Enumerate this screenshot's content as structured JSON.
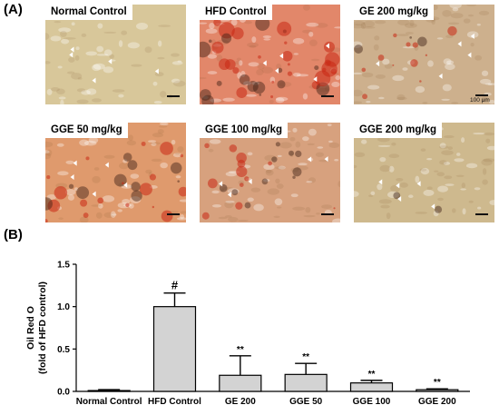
{
  "figure": {
    "panel_a_label": "(A)",
    "panel_b_label": "(B)",
    "micrographs": [
      {
        "label": "Normal Control",
        "base": "#d8c79a",
        "stain": 0.0
      },
      {
        "label": "HFD Control",
        "base": "#e2876a",
        "stain": 1.0
      },
      {
        "label": "GE 200 mg/kg",
        "base": "#cdb08d",
        "stain": 0.35
      },
      {
        "label": "GGE 50 mg/kg",
        "base": "#df9a6d",
        "stain": 0.7
      },
      {
        "label": "GGE 100 mg/kg",
        "base": "#d7a17e",
        "stain": 0.55
      },
      {
        "label": "GGE 200 mg/kg",
        "base": "#ceb98e",
        "stain": 0.05
      }
    ],
    "scale_text": "100 μm"
  },
  "chart_data": {
    "type": "bar",
    "categories": [
      "Normal Control",
      "HFD Control",
      "GE 200",
      "GGE 50",
      "GGE 100",
      "GGE 200"
    ],
    "values": [
      0.01,
      1.0,
      0.19,
      0.2,
      0.1,
      0.02
    ],
    "errors": [
      0.01,
      0.16,
      0.23,
      0.13,
      0.03,
      0.01
    ],
    "annotations": [
      "",
      "#",
      "**",
      "**",
      "**",
      "**"
    ],
    "ylabel_line1": "Oil Red O",
    "ylabel_line2": "(fold of HFD control)",
    "ylim": [
      0,
      1.5
    ],
    "yticks": [
      0.0,
      0.5,
      1.0,
      1.5
    ],
    "ytick_labels": [
      "0.0",
      "0.5",
      "1.0",
      "1.5"
    ],
    "bar_color": "#d3d3d3",
    "grid": false
  }
}
